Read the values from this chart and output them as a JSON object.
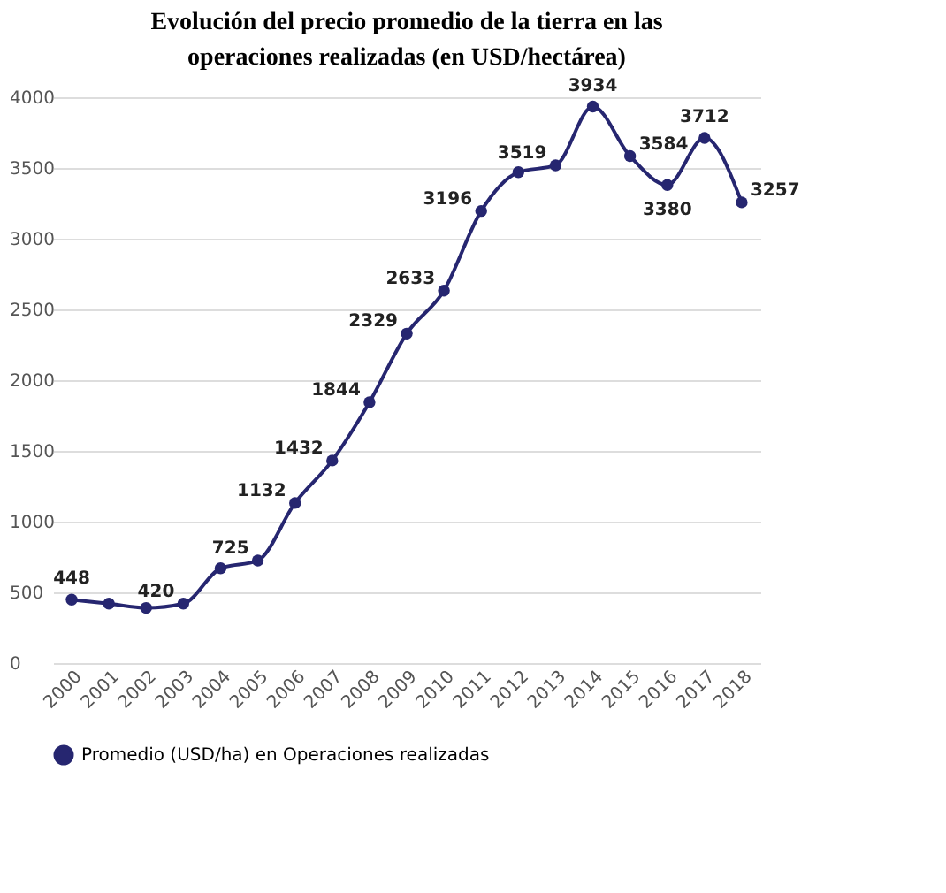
{
  "chart_data": {
    "type": "line",
    "title": "Evolución del precio promedio de la tierra en las operaciones realizadas (en USD/hectárea)",
    "categories": [
      "2000",
      "2001",
      "2002",
      "2003",
      "2004",
      "2005",
      "2006",
      "2007",
      "2008",
      "2009",
      "2010",
      "2011",
      "2012",
      "2013",
      "2014",
      "2015",
      "2016",
      "2017",
      "2018"
    ],
    "series": [
      {
        "name": "Promedio (USD/ha) en Operaciones realizadas",
        "color": "#262670",
        "values": [
          448,
          420,
          390,
          420,
          670,
          725,
          1132,
          1432,
          1844,
          2329,
          2633,
          3196,
          3470,
          3519,
          3934,
          3584,
          3380,
          3712,
          3257
        ],
        "value_labels": [
          "448",
          null,
          null,
          "420",
          null,
          "725",
          "1132",
          "1432",
          "1844",
          "2329",
          "2633",
          "3196",
          null,
          "3519",
          "3934",
          "3584",
          "3380",
          "3712",
          "3257"
        ]
      }
    ],
    "ylim": [
      0,
      4000
    ],
    "yticks": [
      0,
      500,
      1000,
      1500,
      2000,
      2500,
      3000,
      3500,
      4000
    ],
    "grid": "y",
    "legend": "bottom",
    "marker": "circle",
    "line_style": "solid"
  }
}
